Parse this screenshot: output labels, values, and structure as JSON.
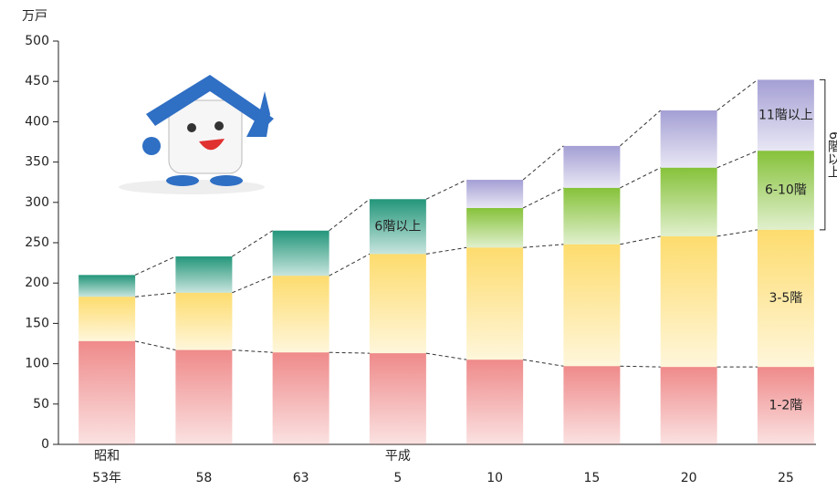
{
  "chart_data": {
    "type": "stacked_bar",
    "y_label": "万戸",
    "categories": [
      "53年",
      "58",
      "63",
      "5",
      "10",
      "15",
      "20",
      "25"
    ],
    "eras": [
      "昭和",
      null,
      null,
      "平成",
      null,
      null,
      null,
      null
    ],
    "series": [
      {
        "name": "1-2階",
        "color": "#ef8a8a",
        "values": [
          128,
          117,
          114,
          113,
          105,
          97,
          96,
          96
        ]
      },
      {
        "name": "3-5階",
        "color": "#fddc6e",
        "values": [
          55,
          71,
          95,
          123,
          139,
          151,
          162,
          170
        ]
      },
      {
        "name": "6階以上",
        "color": "#23967a",
        "values": [
          27,
          45,
          56,
          68,
          null,
          null,
          null,
          null
        ]
      },
      {
        "name": "6-10階",
        "color": "#86c23a",
        "values": [
          null,
          null,
          null,
          null,
          49,
          70,
          85,
          98
        ]
      },
      {
        "name": "11階以上",
        "color": "#a49fd4",
        "values": [
          null,
          null,
          null,
          null,
          35,
          52,
          71,
          88
        ]
      }
    ],
    "bracket_label": "6階以上",
    "ylim": [
      0,
      500
    ],
    "yticks": [
      0,
      50,
      100,
      150,
      200,
      250,
      300,
      350,
      400,
      450,
      500
    ]
  }
}
